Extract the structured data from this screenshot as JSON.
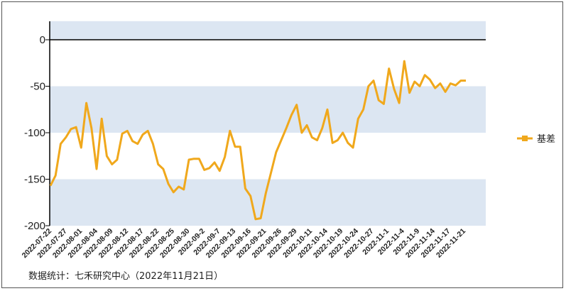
{
  "chart_data": {
    "type": "line",
    "title": "",
    "xlabel": "",
    "ylabel": "",
    "ylim": [
      -200,
      20
    ],
    "yticks": [
      0,
      -50,
      -100,
      -150,
      -200
    ],
    "band_color": "#dce6f2",
    "grid": false,
    "legend_position": "right",
    "x_tick_labels": [
      "2022-07-22",
      "2022-07-27",
      "2022-08-01",
      "2022-08-04",
      "2022-08-09",
      "2022-08-12",
      "2022-08-17",
      "2022-08-22",
      "2022-08-25",
      "2022-08-30",
      "2022-09-2",
      "2022-09-7",
      "2022-09-13",
      "2022-09-16",
      "2022-09-21",
      "2022-09-26",
      "2022-09-29",
      "2022-10-11",
      "2022-10-14",
      "2022-10-19",
      "2022-10-24",
      "2022-10-27",
      "2022-11-1",
      "2022-11-4",
      "2022-11-9",
      "2022-11-14",
      "2022-11-17",
      "2022-11-21"
    ],
    "series": [
      {
        "name": "基差",
        "color": "#f0a81c",
        "values": [
          -157,
          -146,
          -112,
          -105,
          -96,
          -94,
          -116,
          -68,
          -95,
          -139,
          -85,
          -125,
          -134,
          -129,
          -101,
          -98,
          -109,
          -112,
          -102,
          -98,
          -112,
          -134,
          -139,
          -155,
          -164,
          -158,
          -161,
          -129,
          -128,
          -128,
          -140,
          -138,
          -132,
          -141,
          -126,
          -98,
          -115,
          -115,
          -160,
          -168,
          -193,
          -192,
          -165,
          -143,
          -121,
          -108,
          -95,
          -81,
          -70,
          -100,
          -92,
          -105,
          -108,
          -95,
          -75,
          -111,
          -108,
          -100,
          -111,
          -116,
          -85,
          -75,
          -50,
          -44,
          -65,
          -69,
          -31,
          -53,
          -68,
          -23,
          -57,
          -45,
          -50,
          -38,
          -43,
          -52,
          -47,
          -56,
          -47,
          -49,
          -44,
          -44
        ]
      }
    ]
  },
  "legend": {
    "label": "基差"
  },
  "source_text": "数据统计：七禾研究中心（2022年11月21日）"
}
